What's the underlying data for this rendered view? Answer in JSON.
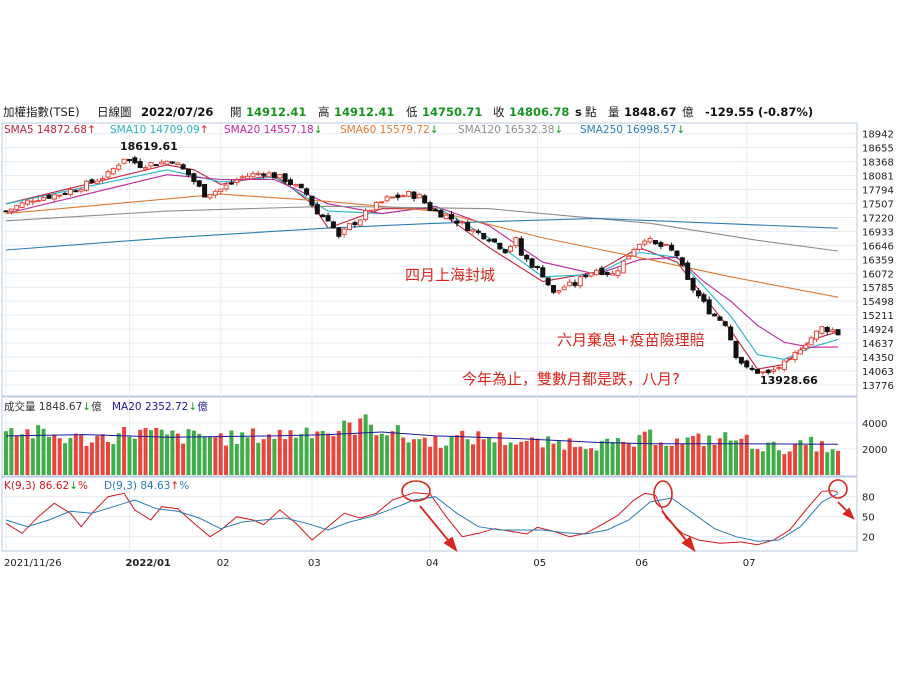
{
  "header": {
    "index_name": "加權指數(TSE)",
    "chart_kind": "日線圖",
    "date": "2022/07/26",
    "open_label": "開",
    "open": "14912.41",
    "high_label": "高",
    "high": "14912.41",
    "low_label": "低",
    "low": "14750.71",
    "close_label": "收",
    "close": "14806.78",
    "flag": "s",
    "unit_points": "點",
    "volume_label": "量",
    "volume": "1848.67",
    "volume_unit": "億",
    "change": "-129.55",
    "change_pct": "(-0.87%)"
  },
  "ma_legend": [
    {
      "text": "SMA5 14872.68",
      "arrow": "↑",
      "color": "#c0243a",
      "arrow_color": "#d4161b"
    },
    {
      "text": "SMA10 14709.09",
      "arrow": "↑",
      "color": "#27b3c4",
      "arrow_color": "#d4161b"
    },
    {
      "text": "SMA20 14557.18",
      "arrow": "↓",
      "color": "#c0269d",
      "arrow_color": "#17961f"
    },
    {
      "text": "SMA60 15579.72",
      "arrow": "↓",
      "color": "#e07a32",
      "arrow_color": "#17961f"
    },
    {
      "text": "SMA120 16532.38",
      "arrow": "↓",
      "color": "#8e8e8e",
      "arrow_color": "#17961f"
    },
    {
      "text": "SMA250 16998.57",
      "arrow": "↓",
      "color": "#2b7db0",
      "arrow_color": "#17961f"
    }
  ],
  "volume_legend": [
    {
      "text": "成交量 1848.67",
      "arrow": "↓",
      "suffix": "億",
      "color": "#333333",
      "arrow_color": "#17961f"
    },
    {
      "text": "MA20 2352.72",
      "arrow": "↓",
      "suffix": "億",
      "color": "#1a1a9a",
      "arrow_color": "#17961f"
    }
  ],
  "kd_legend": [
    {
      "text": "K(9,3) 86.62",
      "arrow": "↓",
      "suffix": "%",
      "color": "#d4161b",
      "arrow_color": "#17961f"
    },
    {
      "text": "D(9,3) 84.63",
      "arrow": "↑",
      "suffix": "%",
      "color": "#2b7db0",
      "arrow_color": "#d4161b"
    }
  ],
  "annotations": {
    "shanghai": "四月上海封城",
    "june": "六月棄息+疫苗險理賠",
    "even_months": "今年為止，雙數月都是跌，八月?",
    "high_label": "18619.61",
    "low_label": "13928.66"
  },
  "colors": {
    "up": "#e8453c",
    "down": "#3fae49",
    "frame": "#b8c8e0",
    "grid": "#e6ecf4"
  },
  "chart_data": [
    {
      "type": "candlestick",
      "panel": "price",
      "ylim": [
        13630,
        19080
      ],
      "y_ticks": [
        18942,
        18655,
        18368,
        18081,
        17794,
        17507,
        17220,
        16933,
        16646,
        16359,
        16072,
        15785,
        15498,
        15211,
        14924,
        14637,
        14350,
        14063,
        13776
      ],
      "x_labels": [
        "2021/11/26",
        "2022/01",
        "02",
        "03",
        "04",
        "05",
        "06",
        "07"
      ],
      "x_label_index": [
        0,
        23,
        40,
        57,
        79,
        99,
        118,
        138
      ],
      "period_high": 18619.61,
      "period_low": 13928.66,
      "close_path": [
        [
          0,
          17350
        ],
        [
          5,
          17600
        ],
        [
          10,
          17700
        ],
        [
          15,
          17900
        ],
        [
          19,
          18100
        ],
        [
          22,
          18450
        ],
        [
          25,
          18300
        ],
        [
          29,
          18350
        ],
        [
          31,
          18400
        ],
        [
          34,
          18100
        ],
        [
          37,
          17700
        ],
        [
          40,
          17800
        ],
        [
          44,
          18050
        ],
        [
          48,
          18150
        ],
        [
          52,
          18000
        ],
        [
          56,
          17700
        ],
        [
          58,
          17300
        ],
        [
          60,
          17200
        ],
        [
          62,
          16800
        ],
        [
          64,
          17050
        ],
        [
          66,
          17200
        ],
        [
          68,
          17400
        ],
        [
          71,
          17600
        ],
        [
          75,
          17700
        ],
        [
          77,
          17650
        ],
        [
          79,
          17400
        ],
        [
          82,
          17250
        ],
        [
          84,
          17150
        ],
        [
          87,
          16950
        ],
        [
          90,
          16800
        ],
        [
          93,
          16550
        ],
        [
          95,
          16750
        ],
        [
          96,
          16450
        ],
        [
          98,
          16250
        ],
        [
          100,
          16050
        ],
        [
          102,
          15650
        ],
        [
          104,
          15800
        ],
        [
          106,
          15850
        ],
        [
          108,
          16050
        ],
        [
          110,
          16150
        ],
        [
          113,
          16050
        ],
        [
          115,
          16300
        ],
        [
          117,
          16600
        ],
        [
          119,
          16800
        ],
        [
          121,
          16650
        ],
        [
          123,
          16600
        ],
        [
          125,
          16450
        ],
        [
          127,
          15900
        ],
        [
          129,
          15600
        ],
        [
          131,
          15300
        ],
        [
          132,
          15200
        ],
        [
          134,
          15050
        ],
        [
          136,
          14400
        ],
        [
          137,
          14250
        ],
        [
          138,
          14100
        ],
        [
          140,
          14050
        ],
        [
          142,
          14000
        ],
        [
          144,
          14150
        ],
        [
          146,
          14250
        ],
        [
          148,
          14550
        ],
        [
          150,
          14750
        ],
        [
          152,
          14950
        ],
        [
          154,
          14900
        ],
        [
          155,
          14806.78
        ]
      ],
      "open": 14912.41,
      "high": 14912.41,
      "low": 14750.71,
      "close": 14806.78
    },
    {
      "type": "line",
      "panel": "price",
      "series": [
        {
          "name": "SMA5",
          "color": "#c0243a",
          "x": [
            0,
            30,
            35,
            40,
            50,
            57,
            60,
            70,
            80,
            90,
            100,
            110,
            118,
            125,
            135,
            140,
            145,
            150,
            155
          ],
          "values": [
            17500,
            18300,
            18200,
            17900,
            18100,
            17500,
            17000,
            17400,
            17400,
            16600,
            15900,
            16100,
            16600,
            16300,
            14900,
            14100,
            14200,
            14700,
            14870
          ]
        },
        {
          "name": "SMA10",
          "color": "#27b3c4",
          "x": [
            0,
            30,
            40,
            50,
            60,
            70,
            80,
            90,
            100,
            110,
            118,
            125,
            135,
            140,
            145,
            150,
            155
          ],
          "values": [
            17500,
            18200,
            17950,
            18050,
            17350,
            17300,
            17450,
            16800,
            16000,
            16050,
            16500,
            16400,
            15200,
            14400,
            14300,
            14550,
            14710
          ]
        },
        {
          "name": "SMA20",
          "color": "#c0269d",
          "x": [
            0,
            30,
            40,
            50,
            60,
            70,
            80,
            90,
            100,
            110,
            118,
            125,
            130,
            135,
            140,
            145,
            150,
            155
          ],
          "values": [
            17300,
            18100,
            18000,
            18000,
            17500,
            17300,
            17450,
            17050,
            16300,
            16050,
            16350,
            16400,
            15900,
            15500,
            15000,
            14650,
            14550,
            14557
          ]
        },
        {
          "name": "SMA60",
          "color": "#e07a32",
          "x": [
            0,
            20,
            40,
            60,
            80,
            100,
            120,
            135,
            155
          ],
          "values": [
            17300,
            17500,
            17700,
            17550,
            17350,
            16800,
            16350,
            16000,
            15580
          ]
        },
        {
          "name": "SMA120",
          "color": "#8e8e8e",
          "x": [
            0,
            30,
            60,
            90,
            120,
            140,
            155
          ],
          "values": [
            17150,
            17350,
            17450,
            17400,
            17100,
            16750,
            16530
          ]
        },
        {
          "name": "SMA250",
          "color": "#2b7db0",
          "x": [
            0,
            30,
            60,
            80,
            110,
            155
          ],
          "values": [
            16550,
            16800,
            17000,
            17100,
            17200,
            16998
          ]
        }
      ]
    },
    {
      "type": "bar",
      "panel": "volume",
      "ylim": [
        0,
        5600
      ],
      "y_ticks": [
        4000,
        2000
      ],
      "vol_path": [
        [
          0,
          3500
        ],
        [
          5,
          3200
        ],
        [
          10,
          2900
        ],
        [
          15,
          2700
        ],
        [
          20,
          3000
        ],
        [
          24,
          3300
        ],
        [
          28,
          3100
        ],
        [
          32,
          2900
        ],
        [
          37,
          3000
        ],
        [
          42,
          2800
        ],
        [
          47,
          3000
        ],
        [
          52,
          3100
        ],
        [
          55,
          3300
        ],
        [
          58,
          3700
        ],
        [
          60,
          3200
        ],
        [
          63,
          3500
        ],
        [
          66,
          4000
        ],
        [
          68,
          3800
        ],
        [
          71,
          3500
        ],
        [
          75,
          2800
        ],
        [
          80,
          2600
        ],
        [
          85,
          2800
        ],
        [
          90,
          2900
        ],
        [
          95,
          2600
        ],
        [
          100,
          2400
        ],
        [
          105,
          2500
        ],
        [
          110,
          2400
        ],
        [
          115,
          2300
        ],
        [
          118,
          2500
        ],
        [
          120,
          3000
        ],
        [
          125,
          2500
        ],
        [
          130,
          2700
        ],
        [
          135,
          2800
        ],
        [
          138,
          2600
        ],
        [
          141,
          2200
        ],
        [
          146,
          2000
        ],
        [
          150,
          2400
        ],
        [
          155,
          1849
        ]
      ],
      "ma20_path": [
        [
          0,
          3000
        ],
        [
          15,
          3100
        ],
        [
          30,
          2900
        ],
        [
          50,
          3000
        ],
        [
          60,
          3100
        ],
        [
          70,
          3300
        ],
        [
          80,
          3000
        ],
        [
          95,
          2800
        ],
        [
          110,
          2500
        ],
        [
          120,
          2400
        ],
        [
          135,
          2400
        ],
        [
          155,
          2353
        ]
      ],
      "current": 1848.67,
      "ma20": 2352.72
    },
    {
      "type": "line",
      "panel": "kd",
      "ylim": [
        0,
        105
      ],
      "y_ticks": [
        80,
        50,
        20
      ],
      "series": [
        {
          "name": "K(9,3)",
          "color": "#d4161b",
          "x": [
            0,
            3,
            6,
            9,
            12,
            14,
            16,
            19,
            22,
            24,
            27,
            29,
            32,
            35,
            38,
            40,
            43,
            46,
            48,
            51,
            54,
            57,
            60,
            63,
            66,
            69,
            72,
            76,
            79,
            82,
            85,
            88,
            91,
            94,
            97,
            99,
            102,
            105,
            108,
            111,
            114,
            117,
            119,
            121,
            123,
            126,
            129,
            133,
            137,
            140,
            143,
            146,
            149,
            152,
            154,
            155
          ],
          "values": [
            40,
            25,
            50,
            70,
            55,
            35,
            55,
            80,
            85,
            60,
            45,
            65,
            62,
            40,
            20,
            30,
            50,
            45,
            38,
            60,
            40,
            15,
            35,
            55,
            48,
            55,
            75,
            86,
            84,
            50,
            20,
            25,
            32,
            28,
            24,
            34,
            28,
            20,
            25,
            38,
            52,
            75,
            85,
            82,
            48,
            25,
            15,
            10,
            12,
            8,
            15,
            30,
            60,
            88,
            89,
            86.62
          ]
        },
        {
          "name": "D(9,3)",
          "color": "#2b7db0",
          "x": [
            0,
            4,
            8,
            12,
            16,
            20,
            24,
            28,
            32,
            36,
            40,
            44,
            48,
            52,
            56,
            60,
            64,
            68,
            72,
            76,
            80,
            84,
            88,
            92,
            96,
            100,
            104,
            108,
            112,
            116,
            120,
            124,
            128,
            132,
            136,
            140,
            144,
            148,
            152,
            155
          ],
          "values": [
            45,
            35,
            45,
            58,
            55,
            65,
            75,
            62,
            58,
            48,
            32,
            42,
            45,
            48,
            40,
            30,
            42,
            50,
            62,
            75,
            80,
            55,
            35,
            30,
            30,
            30,
            26,
            24,
            30,
            45,
            72,
            78,
            55,
            32,
            20,
            13,
            15,
            35,
            72,
            84.63
          ]
        }
      ]
    }
  ]
}
